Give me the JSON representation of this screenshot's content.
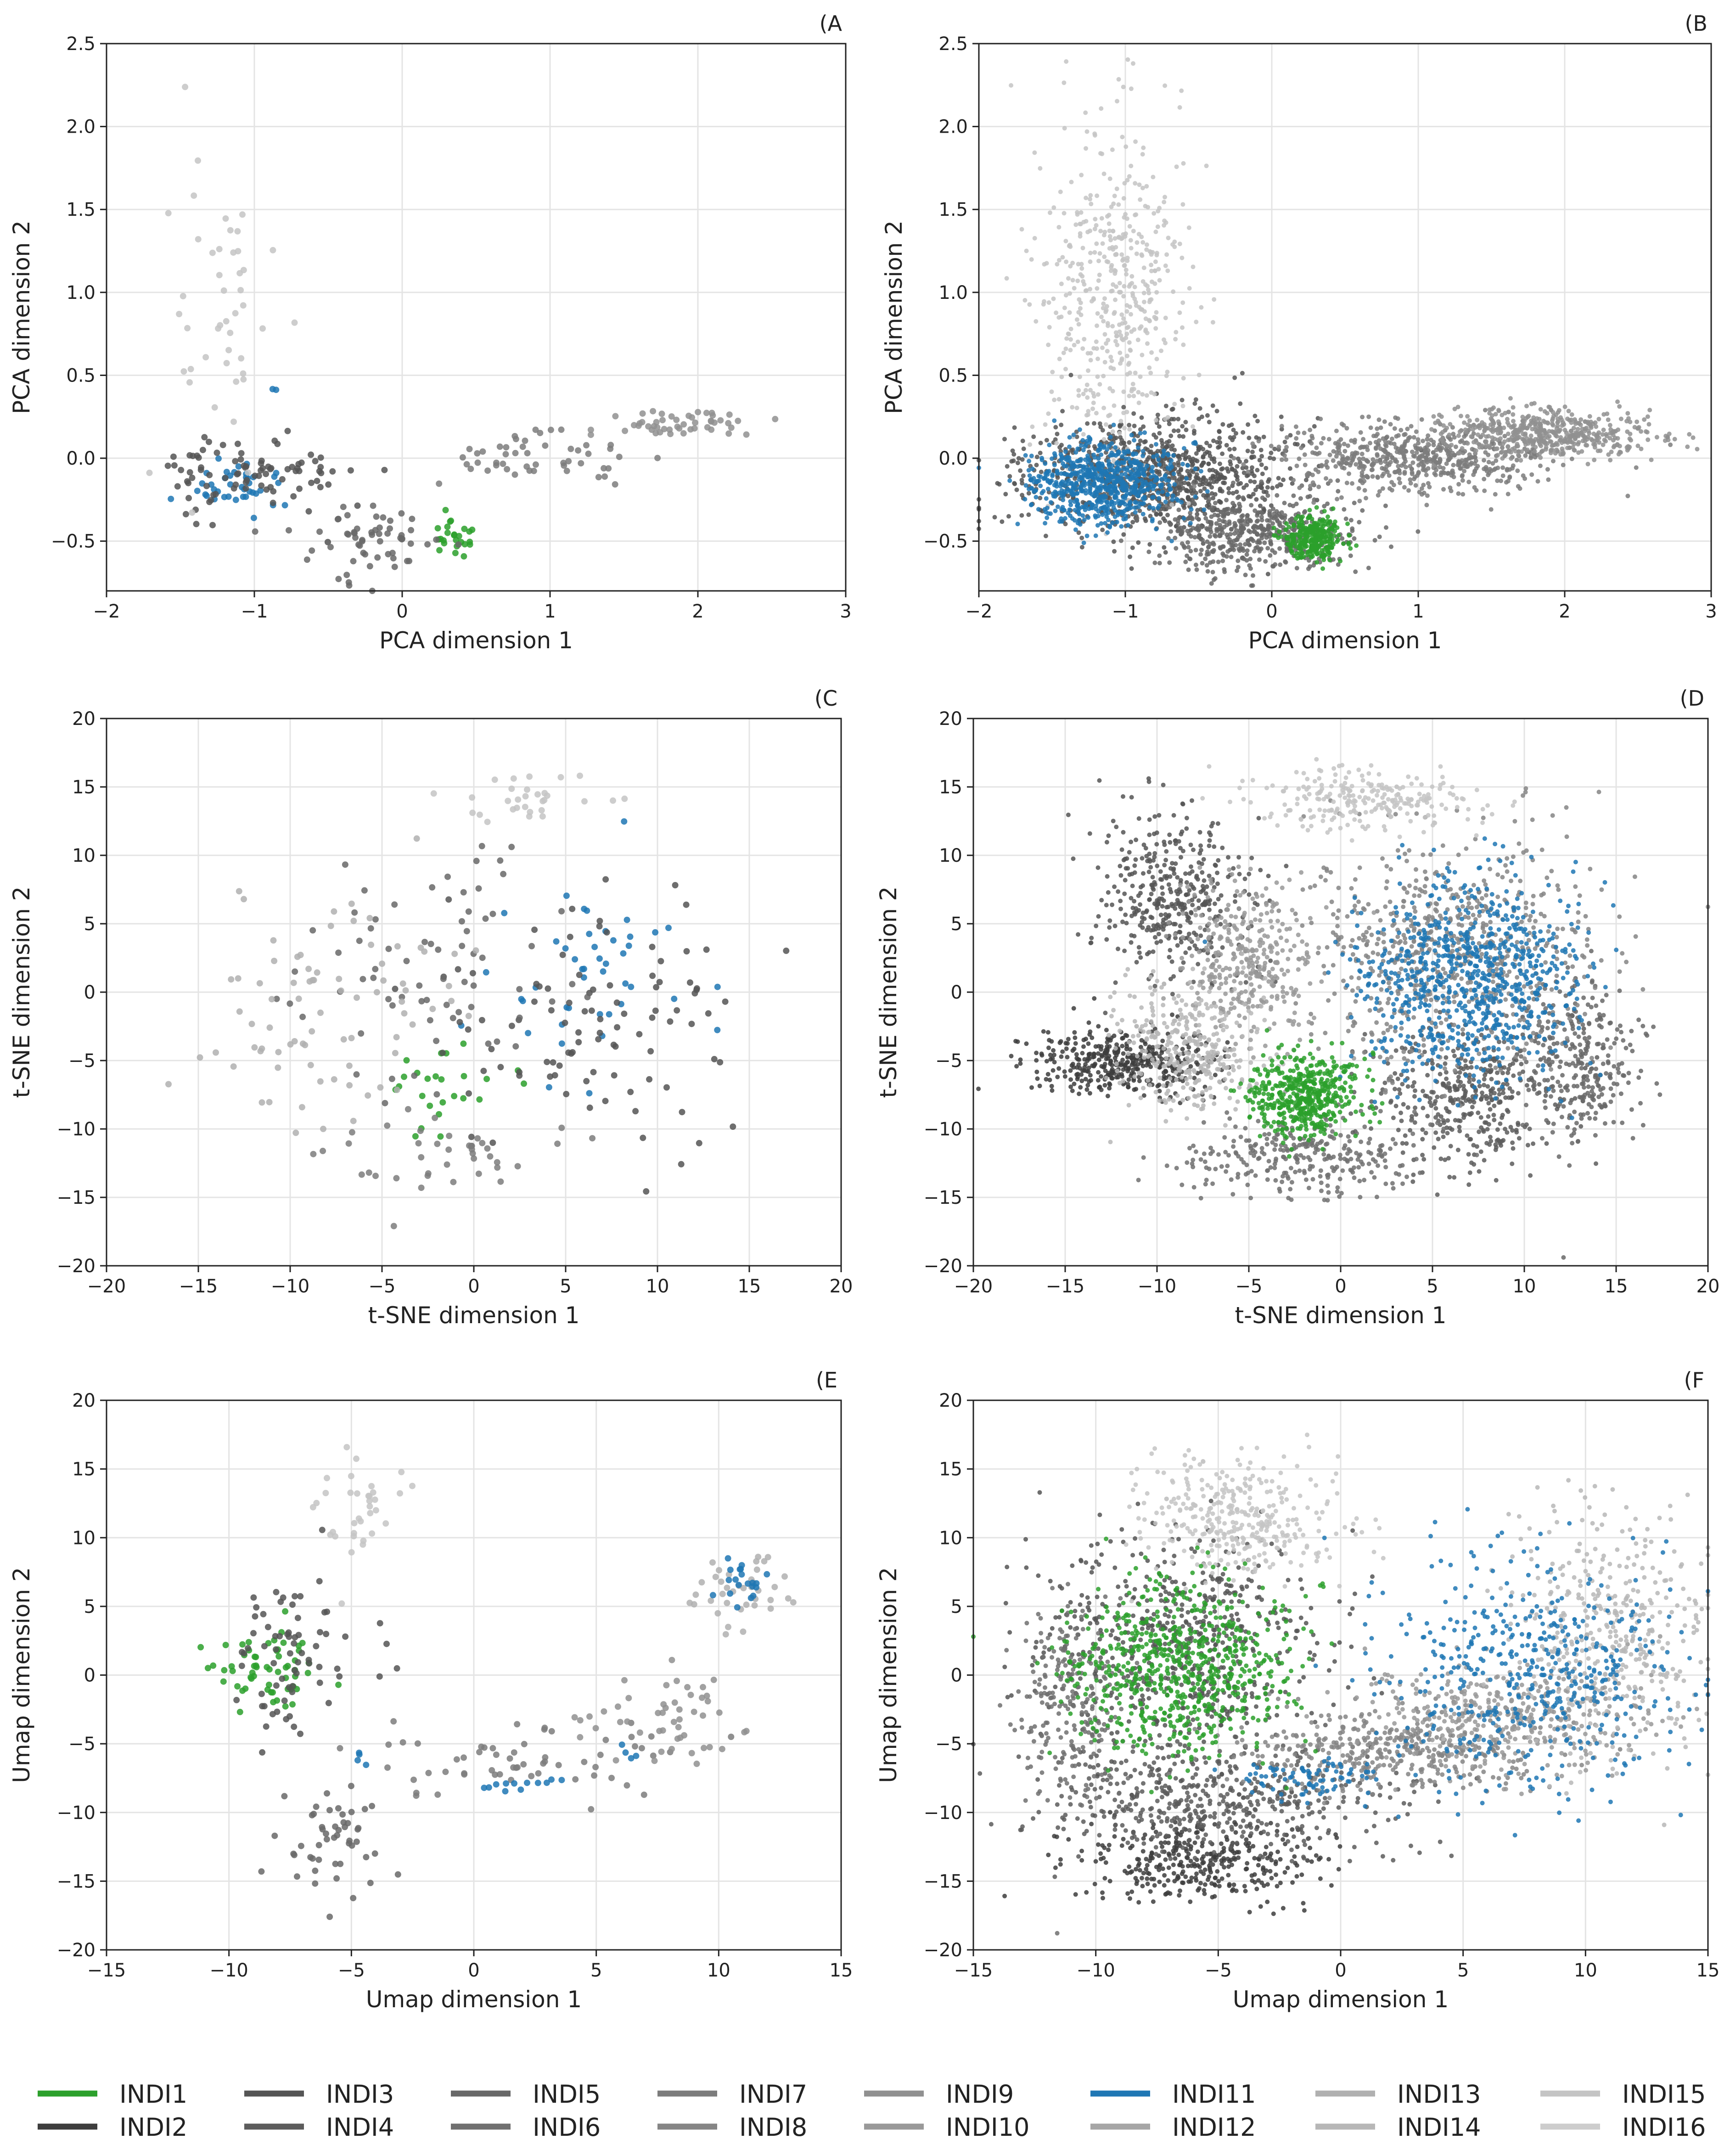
{
  "chart_data": [
    {
      "type": "scatter",
      "panel_label": "(A",
      "xlabel": "PCA dimension 1",
      "ylabel": "PCA dimension 2",
      "xlim": [
        -2,
        3
      ],
      "ylim": [
        -0.8,
        2.5
      ],
      "xticks": [
        -2,
        -1,
        0,
        1,
        2,
        3
      ],
      "yticks": [
        -0.5,
        0.0,
        0.5,
        1.0,
        1.5,
        2.0,
        2.5
      ],
      "xtick_labels": [
        "−2",
        "−1",
        "0",
        "1",
        "2",
        "3"
      ],
      "ytick_labels": [
        "−0.5",
        "0.0",
        "0.5",
        "1.0",
        "1.5",
        "2.0",
        "2.5"
      ],
      "grid": true,
      "density": "sparse",
      "clusters": [
        {
          "label": "INDI1",
          "cx": 0.33,
          "cy": -0.48,
          "sx": 0.07,
          "sy": 0.05,
          "n": 25
        },
        {
          "label": "INDI11",
          "cx": -1.15,
          "cy": -0.15,
          "sx": 0.18,
          "sy": 0.08,
          "n": 40
        },
        {
          "label": "INDI11",
          "cx": -0.85,
          "cy": 0.42,
          "sx": 0.02,
          "sy": 0.02,
          "n": 2
        },
        {
          "label": "INDI3",
          "cx": -1.0,
          "cy": -0.1,
          "sx": 0.35,
          "sy": 0.12,
          "n": 90
        },
        {
          "label": "INDI5",
          "cx": -0.2,
          "cy": -0.5,
          "sx": 0.3,
          "sy": 0.1,
          "n": 60
        },
        {
          "label": "INDI7",
          "cx": 0.9,
          "cy": 0.0,
          "sx": 0.35,
          "sy": 0.08,
          "n": 50
        },
        {
          "label": "INDI9",
          "cx": 1.9,
          "cy": 0.2,
          "sx": 0.25,
          "sy": 0.04,
          "n": 50
        },
        {
          "label": "INDI15",
          "cx": -1.2,
          "cy": 1.0,
          "sx": 0.2,
          "sy": 0.5,
          "n": 45
        }
      ]
    },
    {
      "type": "scatter",
      "panel_label": "(B",
      "xlabel": "PCA dimension 1",
      "ylabel": "PCA dimension 2",
      "xlim": [
        -2,
        3
      ],
      "ylim": [
        -0.8,
        2.5
      ],
      "xticks": [
        -2,
        -1,
        0,
        1,
        2,
        3
      ],
      "yticks": [
        -0.5,
        0.0,
        0.5,
        1.0,
        1.5,
        2.0,
        2.5
      ],
      "xtick_labels": [
        "−2",
        "−1",
        "0",
        "1",
        "2",
        "3"
      ],
      "ytick_labels": [
        "−0.5",
        "0.0",
        "0.5",
        "1.0",
        "1.5",
        "2.0",
        "2.5"
      ],
      "grid": true,
      "density": "dense",
      "clusters": [
        {
          "label": "INDI3",
          "cx": -0.8,
          "cy": -0.1,
          "sx": 0.45,
          "sy": 0.18,
          "n": 900
        },
        {
          "label": "INDI5",
          "cx": -0.1,
          "cy": -0.45,
          "sx": 0.35,
          "sy": 0.12,
          "n": 500
        },
        {
          "label": "INDI7",
          "cx": 1.0,
          "cy": 0.0,
          "sx": 0.45,
          "sy": 0.1,
          "n": 600
        },
        {
          "label": "INDI9",
          "cx": 1.9,
          "cy": 0.15,
          "sx": 0.35,
          "sy": 0.07,
          "n": 500
        },
        {
          "label": "INDI15",
          "cx": -1.1,
          "cy": 1.0,
          "sx": 0.25,
          "sy": 0.5,
          "n": 500
        },
        {
          "label": "INDI11",
          "cx": -1.15,
          "cy": -0.15,
          "sx": 0.25,
          "sy": 0.12,
          "n": 700
        },
        {
          "label": "INDI1",
          "cx": 0.28,
          "cy": -0.48,
          "sx": 0.1,
          "sy": 0.07,
          "n": 300
        }
      ]
    },
    {
      "type": "scatter",
      "panel_label": "(C",
      "xlabel": "t-SNE dimension 1",
      "ylabel": "t-SNE dimension 2",
      "xlim": [
        -20,
        20
      ],
      "ylim": [
        -20,
        20
      ],
      "xticks": [
        -20,
        -15,
        -10,
        -5,
        0,
        5,
        10,
        15,
        20
      ],
      "yticks": [
        -20,
        -15,
        -10,
        -5,
        0,
        5,
        10,
        15,
        20
      ],
      "xtick_labels": [
        "−20",
        "−15",
        "−10",
        "−5",
        "0",
        "5",
        "10",
        "15",
        "20"
      ],
      "ytick_labels": [
        "−20",
        "−15",
        "−10",
        "−5",
        "0",
        "5",
        "10",
        "15",
        "20"
      ],
      "grid": true,
      "density": "sparse",
      "clusters": [
        {
          "label": "INDI1",
          "cx": -2.0,
          "cy": -7.5,
          "sx": 1.8,
          "sy": 1.6,
          "n": 25
        },
        {
          "label": "INDI11",
          "cx": 6.0,
          "cy": 1.0,
          "sx": 2.5,
          "sy": 3.0,
          "n": 45
        },
        {
          "label": "INDI3",
          "cx": 7.0,
          "cy": -2.0,
          "sx": 4.0,
          "sy": 5.0,
          "n": 100
        },
        {
          "label": "INDI5",
          "cx": -2.0,
          "cy": 2.0,
          "sx": 4.0,
          "sy": 5.0,
          "n": 70
        },
        {
          "label": "INDI7",
          "cx": -1.0,
          "cy": -12.0,
          "sx": 3.0,
          "sy": 1.5,
          "n": 40
        },
        {
          "label": "INDI13",
          "cx": -8.0,
          "cy": -2.0,
          "sx": 3.5,
          "sy": 4.0,
          "n": 80
        },
        {
          "label": "INDI15",
          "cx": 2.0,
          "cy": 14.0,
          "sx": 3.0,
          "sy": 1.0,
          "n": 30
        }
      ]
    },
    {
      "type": "scatter",
      "panel_label": "(D",
      "xlabel": "t-SNE dimension 1",
      "ylabel": "t-SNE dimension 2",
      "xlim": [
        -20,
        20
      ],
      "ylim": [
        -20,
        20
      ],
      "xticks": [
        -20,
        -15,
        -10,
        -5,
        0,
        5,
        10,
        15,
        20
      ],
      "yticks": [
        -20,
        -15,
        -10,
        -5,
        0,
        5,
        10,
        15,
        20
      ],
      "xtick_labels": [
        "−20",
        "−15",
        "−10",
        "−5",
        "0",
        "5",
        "10",
        "15",
        "20"
      ],
      "ytick_labels": [
        "−20",
        "−15",
        "−10",
        "−5",
        "0",
        "5",
        "10",
        "15",
        "20"
      ],
      "grid": true,
      "density": "dense",
      "clusters": [
        {
          "label": "INDI2",
          "cx": -12.0,
          "cy": -5.0,
          "sx": 2.5,
          "sy": 1.2,
          "n": 400
        },
        {
          "label": "INDI3",
          "cx": -9.0,
          "cy": 7.0,
          "sx": 2.0,
          "sy": 3.0,
          "n": 400
        },
        {
          "label": "INDI4",
          "cx": 7.0,
          "cy": -8.0,
          "sx": 2.5,
          "sy": 2.5,
          "n": 400
        },
        {
          "label": "INDI5",
          "cx": 13.0,
          "cy": -5.0,
          "sx": 1.5,
          "sy": 3.0,
          "n": 300
        },
        {
          "label": "INDI6",
          "cx": -2.0,
          "cy": -12.0,
          "sx": 3.0,
          "sy": 1.5,
          "n": 300
        },
        {
          "label": "INDI8",
          "cx": 6.0,
          "cy": 3.0,
          "sx": 4.0,
          "sy": 4.0,
          "n": 700
        },
        {
          "label": "INDI10",
          "cx": -5.0,
          "cy": 2.0,
          "sx": 1.8,
          "sy": 3.0,
          "n": 350
        },
        {
          "label": "INDI14",
          "cx": -8.0,
          "cy": -4.0,
          "sx": 2.0,
          "sy": 2.5,
          "n": 350
        },
        {
          "label": "INDI15",
          "cx": 1.0,
          "cy": 14.0,
          "sx": 3.0,
          "sy": 1.0,
          "n": 250
        },
        {
          "label": "INDI11",
          "cx": 7.0,
          "cy": 1.0,
          "sx": 3.0,
          "sy": 3.5,
          "n": 800
        },
        {
          "label": "INDI1",
          "cx": -2.0,
          "cy": -7.5,
          "sx": 1.5,
          "sy": 1.5,
          "n": 500
        }
      ]
    },
    {
      "type": "scatter",
      "panel_label": "(E",
      "xlabel": "Umap dimension 1",
      "ylabel": "Umap dimension 2",
      "xlim": [
        -15,
        15
      ],
      "ylim": [
        -20,
        20
      ],
      "xticks": [
        -15,
        -10,
        -5,
        0,
        5,
        10,
        15
      ],
      "yticks": [
        -20,
        -15,
        -10,
        -5,
        0,
        5,
        10,
        15,
        20
      ],
      "xtick_labels": [
        "−15",
        "−10",
        "−5",
        "0",
        "5",
        "10",
        "15"
      ],
      "ytick_labels": [
        "−20",
        "−15",
        "−10",
        "−5",
        "0",
        "5",
        "10",
        "15",
        "20"
      ],
      "grid": true,
      "density": "sparse",
      "clusters": [
        {
          "label": "INDI1",
          "cx": -8.5,
          "cy": 0.5,
          "sx": 1.0,
          "sy": 1.8,
          "n": 60
        },
        {
          "label": "INDI3",
          "cx": -7.5,
          "cy": 1.0,
          "sx": 1.5,
          "sy": 2.5,
          "n": 70
        },
        {
          "label": "INDI5",
          "cx": -6.0,
          "cy": -12.0,
          "sx": 1.0,
          "sy": 2.0,
          "n": 50
        },
        {
          "label": "INDI7",
          "cx": 3.0,
          "cy": -6.0,
          "sx": 3.0,
          "sy": 1.5,
          "n": 60
        },
        {
          "label": "INDI9",
          "cx": 8.0,
          "cy": -3.0,
          "sx": 2.0,
          "sy": 2.0,
          "n": 50
        },
        {
          "label": "INDI13",
          "cx": 11.0,
          "cy": 6.0,
          "sx": 1.0,
          "sy": 1.5,
          "n": 40
        },
        {
          "label": "INDI15",
          "cx": -4.5,
          "cy": 12.0,
          "sx": 0.8,
          "sy": 2.0,
          "n": 35
        },
        {
          "label": "INDI11",
          "cx": 11.0,
          "cy": 7.0,
          "sx": 0.5,
          "sy": 1.0,
          "n": 20
        },
        {
          "label": "INDI11",
          "cx": 2.0,
          "cy": -8.0,
          "sx": 0.8,
          "sy": 0.3,
          "n": 12
        },
        {
          "label": "INDI11",
          "cx": -4.8,
          "cy": -6.5,
          "sx": 0.3,
          "sy": 0.4,
          "n": 4
        },
        {
          "label": "INDI11",
          "cx": 6.3,
          "cy": -5.5,
          "sx": 0.3,
          "sy": 0.3,
          "n": 4
        }
      ]
    },
    {
      "type": "scatter",
      "panel_label": "(F",
      "xlabel": "Umap dimension 1",
      "ylabel": "Umap dimension 2",
      "xlim": [
        -15,
        15
      ],
      "ylim": [
        -20,
        20
      ],
      "xticks": [
        -15,
        -10,
        -5,
        0,
        5,
        10,
        15
      ],
      "yticks": [
        -20,
        -15,
        -10,
        -5,
        0,
        5,
        10,
        15,
        20
      ],
      "xtick_labels": [
        "−15",
        "−10",
        "−5",
        "0",
        "5",
        "10",
        "15"
      ],
      "ytick_labels": [
        "−20",
        "−15",
        "−10",
        "−5",
        "0",
        "5",
        "10",
        "15",
        "20"
      ],
      "grid": true,
      "density": "dense",
      "clusters": [
        {
          "label": "INDI2",
          "cx": -6.0,
          "cy": -13.5,
          "sx": 2.5,
          "sy": 1.5,
          "n": 350
        },
        {
          "label": "INDI4",
          "cx": -5.0,
          "cy": -9.0,
          "sx": 3.5,
          "sy": 2.0,
          "n": 500
        },
        {
          "label": "INDI3",
          "cx": -6.5,
          "cy": 2.0,
          "sx": 2.8,
          "sy": 4.0,
          "n": 600
        },
        {
          "label": "INDI6",
          "cx": -11.0,
          "cy": -2.0,
          "sx": 1.0,
          "sy": 3.5,
          "n": 250
        },
        {
          "label": "INDI8",
          "cx": 2.0,
          "cy": -5.5,
          "sx": 3.0,
          "sy": 1.5,
          "n": 400
        },
        {
          "label": "INDI10",
          "cx": 7.0,
          "cy": -3.0,
          "sx": 3.0,
          "sy": 2.0,
          "n": 400
        },
        {
          "label": "INDI14",
          "cx": 11.0,
          "cy": 3.0,
          "sx": 2.0,
          "sy": 4.5,
          "n": 400
        },
        {
          "label": "INDI15",
          "cx": -4.0,
          "cy": 11.5,
          "sx": 2.0,
          "sy": 2.2,
          "n": 350
        },
        {
          "label": "INDI11",
          "cx": 7.5,
          "cy": 0.0,
          "sx": 3.0,
          "sy": 4.0,
          "n": 500
        },
        {
          "label": "INDI11",
          "cx": -1.5,
          "cy": -7.5,
          "sx": 1.5,
          "sy": 0.8,
          "n": 80
        },
        {
          "label": "INDI1",
          "cx": -6.5,
          "cy": 0.5,
          "sx": 2.3,
          "sy": 3.0,
          "n": 700
        }
      ]
    }
  ],
  "legend": [
    {
      "label": "INDI1",
      "color": "#2ca02c"
    },
    {
      "label": "INDI2",
      "color": "#3d3d3d"
    },
    {
      "label": "INDI3",
      "color": "#555555"
    },
    {
      "label": "INDI4",
      "color": "#5c5c5c"
    },
    {
      "label": "INDI5",
      "color": "#686868"
    },
    {
      "label": "INDI6",
      "color": "#707070"
    },
    {
      "label": "INDI7",
      "color": "#7c7c7c"
    },
    {
      "label": "INDI8",
      "color": "#858585"
    },
    {
      "label": "INDI9",
      "color": "#909090"
    },
    {
      "label": "INDI10",
      "color": "#999999"
    },
    {
      "label": "INDI11",
      "color": "#1f77b4"
    },
    {
      "label": "INDI12",
      "color": "#a6a6a6"
    },
    {
      "label": "INDI13",
      "color": "#b0b0b0"
    },
    {
      "label": "INDI14",
      "color": "#b7b7b7"
    },
    {
      "label": "INDI15",
      "color": "#c4c4c4"
    },
    {
      "label": "INDI16",
      "color": "#cdcdcd"
    }
  ]
}
